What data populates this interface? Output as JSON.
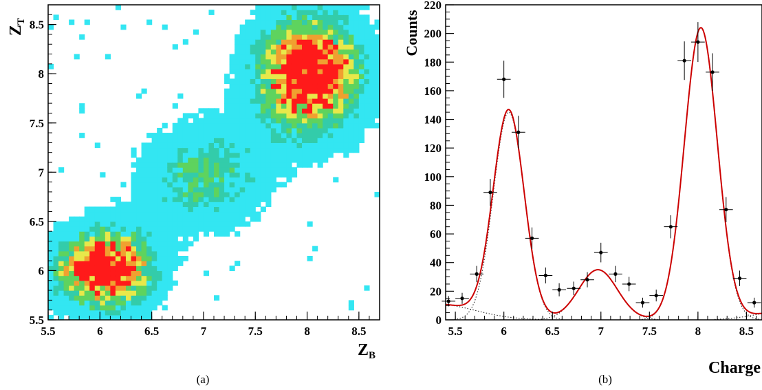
{
  "chart_data": [
    {
      "type": "heatmap",
      "caption": "(a)",
      "xlabel": "Z",
      "xlabel_sub": "B",
      "ylabel": "Z",
      "ylabel_sub": "T",
      "xlim": [
        5.5,
        8.7
      ],
      "ylim": [
        5.5,
        8.7
      ],
      "x_ticks": [
        "5.5",
        "6",
        "6.5",
        "7",
        "7.5",
        "8",
        "8.5"
      ],
      "y_ticks": [
        "5.5",
        "6",
        "6.5",
        "7",
        "7.5",
        "8",
        "8.5"
      ],
      "grid": false,
      "colors": {
        "level1": "#33e6f2",
        "level2": "#33ccaa",
        "level3": "#5ed35e",
        "level4": "#e8e84a",
        "level5": "#f0a030",
        "level6": "#ff1a1a"
      },
      "clusters": [
        {
          "x": 6.05,
          "y": 6.0,
          "intensity": "high"
        },
        {
          "x": 7.05,
          "y": 7.0,
          "intensity": "medium"
        },
        {
          "x": 8.0,
          "y": 8.0,
          "intensity": "high"
        }
      ]
    },
    {
      "type": "scatter",
      "caption": "(b)",
      "xlabel": "Charge",
      "ylabel": "Counts",
      "xlim": [
        5.4,
        8.66
      ],
      "ylim": [
        0,
        220
      ],
      "x_ticks": [
        "5.5",
        "6",
        "6.5",
        "7",
        "7.5",
        "8",
        "8.5"
      ],
      "y_ticks": [
        "0",
        "20",
        "40",
        "60",
        "80",
        "100",
        "120",
        "140",
        "160",
        "180",
        "200",
        "220"
      ],
      "grid": false,
      "series": [
        {
          "style": "points with error bars",
          "x": [
            5.43,
            5.57,
            5.72,
            5.86,
            6.0,
            6.15,
            6.29,
            6.43,
            6.57,
            6.72,
            6.86,
            7.0,
            7.15,
            7.29,
            7.43,
            7.57,
            7.72,
            7.86,
            8.0,
            8.15,
            8.29,
            8.43,
            8.58
          ],
          "y": [
            13,
            15,
            32,
            89,
            168,
            131,
            57,
            31,
            21,
            22,
            28,
            47,
            32,
            25,
            12,
            17,
            65,
            181,
            194,
            173,
            77,
            29,
            12
          ],
          "xerr": 0.07,
          "color": "#000000"
        },
        {
          "style": "solid line",
          "description_values": "total Gaussian fit",
          "color": "#cc0000",
          "components": [
            {
              "amp": 11,
              "mean": 5.3,
              "sigma": 0.4
            },
            {
              "amp": 145,
              "mean": 6.05,
              "sigma": 0.16
            },
            {
              "amp": 35,
              "mean": 6.97,
              "sigma": 0.2
            },
            {
              "amp": 204,
              "mean": 8.03,
              "sigma": 0.17
            },
            {
              "amp": 6,
              "mean": 8.9,
              "sigma": 0.3
            }
          ]
        },
        {
          "style": "dotted lines",
          "color": "#333333"
        }
      ]
    }
  ]
}
